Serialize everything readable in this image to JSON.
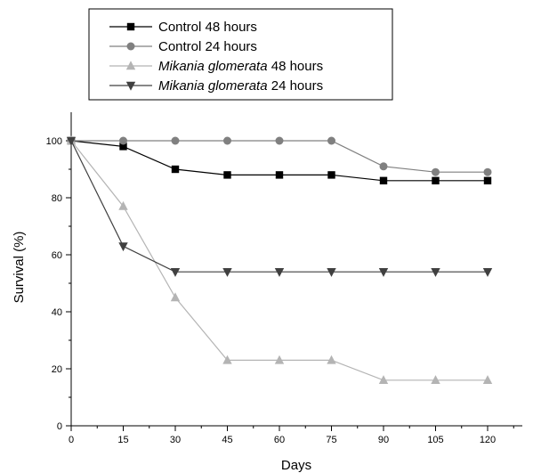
{
  "chart_data": {
    "type": "line",
    "title": "",
    "xlabel": "Days",
    "ylabel": "Survival (%)",
    "x": [
      0,
      15,
      30,
      45,
      60,
      75,
      90,
      105,
      120
    ],
    "xticks": [
      "0",
      "15",
      "30",
      "45",
      "60",
      "75",
      "90",
      "105",
      "120"
    ],
    "yticks": [
      "0",
      "20",
      "40",
      "60",
      "80",
      "100"
    ],
    "xlim": [
      0,
      130
    ],
    "ylim": [
      0,
      110
    ],
    "grid": false,
    "legend_position": "top-left",
    "series": [
      {
        "name_prefix": "Control",
        "name_suffix": " 48 hours",
        "italic_prefix": false,
        "marker": "square",
        "color": "#000000",
        "values": [
          100,
          98,
          90,
          88,
          88,
          88,
          86,
          86,
          86
        ]
      },
      {
        "name_prefix": "Control",
        "name_suffix": " 24 hours",
        "italic_prefix": false,
        "marker": "circle",
        "color": "#808080",
        "values": [
          100,
          100,
          100,
          100,
          100,
          100,
          91,
          89,
          89
        ]
      },
      {
        "name_prefix": "Mikania glomerata",
        "name_suffix": " 48 hours",
        "italic_prefix": true,
        "marker": "triangle-up",
        "color": "#b4b4b4",
        "values": [
          100,
          77,
          45,
          23,
          23,
          23,
          16,
          16,
          16
        ]
      },
      {
        "name_prefix": "Mikania glomerata",
        "name_suffix": " 24 hours",
        "italic_prefix": true,
        "marker": "triangle-down",
        "color": "#404040",
        "values": [
          100,
          63,
          54,
          54,
          54,
          54,
          54,
          54,
          54
        ]
      }
    ]
  }
}
